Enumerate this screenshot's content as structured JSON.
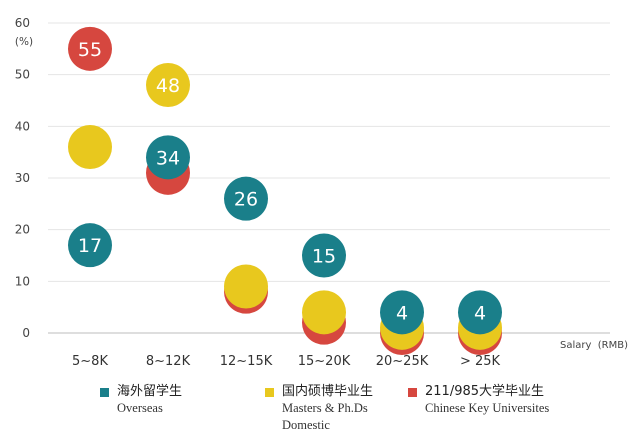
{
  "chart_data": {
    "type": "scatter",
    "categories": [
      "5~8K",
      "8~12K",
      "12~15K",
      "15~20K",
      "20~25K",
      "> 25K"
    ],
    "xlabel": "Salary  (RMB)",
    "ylabel": "(%)",
    "ylim": [
      0,
      60
    ],
    "yticks": [
      0,
      10,
      20,
      30,
      40,
      50,
      60
    ],
    "grid": true,
    "legend_position": "bottom",
    "series": [
      {
        "name": "海外留学生",
        "name_en": "Overseas",
        "color": "#1a7f8a",
        "values": [
          17,
          34,
          26,
          15,
          4,
          4
        ],
        "labels": [
          "17",
          "34",
          "26",
          "15",
          "4",
          "4"
        ]
      },
      {
        "name": "国内硕博毕业生",
        "name_en": "Masters & Ph.Ds Domestic",
        "color": "#e8c81e",
        "values": [
          36,
          48,
          9,
          4,
          1,
          1
        ],
        "labels": [
          "",
          "48",
          "",
          "",
          "",
          ""
        ]
      },
      {
        "name": "211/985大学毕业生",
        "name_en": "Chinese Key Universites",
        "color": "#d6473f",
        "values": [
          55,
          31,
          8,
          2,
          0,
          0
        ],
        "labels": [
          "55",
          "",
          "",
          "",
          "",
          ""
        ]
      }
    ]
  }
}
